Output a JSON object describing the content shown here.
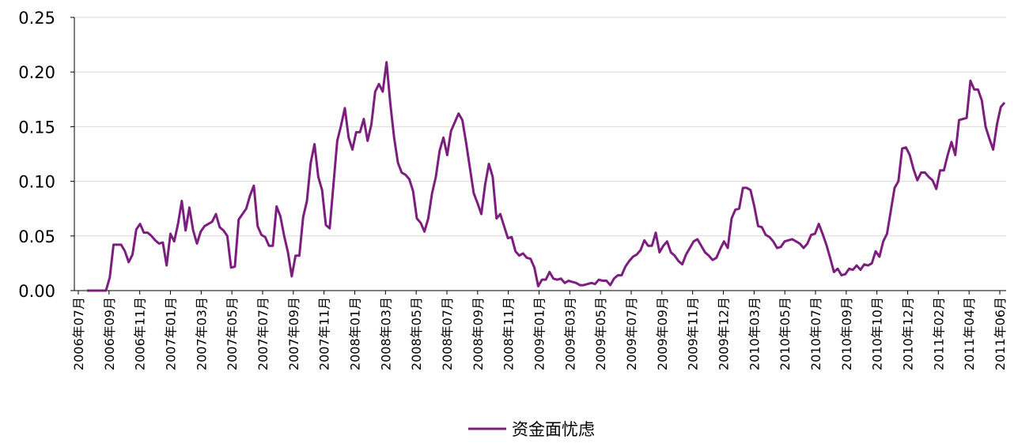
{
  "chart_data": {
    "type": "line",
    "title": "",
    "xlabel": "",
    "ylabel": "",
    "ylim": [
      0,
      0.25
    ],
    "yticks": [
      "0.00",
      "0.05",
      "0.10",
      "0.15",
      "0.20",
      "0.25"
    ],
    "grid": "horizontal",
    "legend_position": "bottom",
    "color": "#7B1E7E",
    "xtick_labels": [
      "2006年07月",
      "2006年09月",
      "2006年11月",
      "2007年01月",
      "2007年03月",
      "2007年05月",
      "2007年07月",
      "2007年09月",
      "2007年11月",
      "2008年01月",
      "2008年03月",
      "2008年05月",
      "2008年07月",
      "2008年09月",
      "2008年11月",
      "2009年01月",
      "2009年03月",
      "2009年05月",
      "2009年07月",
      "2009年09月",
      "2009年11月",
      "2009年12月",
      "2010年03月",
      "2010年05月",
      "2010年07月",
      "2010年09月",
      "2010年10月",
      "2010年12月",
      "2011年02月",
      "2011年04月",
      "2011年06月"
    ],
    "series": [
      {
        "name": "资金面忧虑",
        "values": [
          0,
          0,
          0,
          0,
          0,
          0,
          0.012,
          0.042,
          0.042,
          0.042,
          0.036,
          0.026,
          0.033,
          0.056,
          0.061,
          0.053,
          0.053,
          0.05,
          0.046,
          0.043,
          0.044,
          0.023,
          0.052,
          0.045,
          0.061,
          0.082,
          0.055,
          0.076,
          0.055,
          0.043,
          0.054,
          0.059,
          0.061,
          0.063,
          0.07,
          0.058,
          0.055,
          0.05,
          0.021,
          0.022,
          0.065,
          0.07,
          0.075,
          0.087,
          0.096,
          0.059,
          0.051,
          0.049,
          0.041,
          0.041,
          0.077,
          0.068,
          0.05,
          0.035,
          0.013,
          0.032,
          0.032,
          0.067,
          0.082,
          0.117,
          0.134,
          0.104,
          0.092,
          0.06,
          0.057,
          0.097,
          0.137,
          0.151,
          0.167,
          0.14,
          0.129,
          0.145,
          0.145,
          0.157,
          0.137,
          0.152,
          0.182,
          0.189,
          0.182,
          0.209,
          0.171,
          0.14,
          0.117,
          0.108,
          0.106,
          0.102,
          0.091,
          0.066,
          0.062,
          0.054,
          0.066,
          0.089,
          0.104,
          0.128,
          0.14,
          0.124,
          0.146,
          0.154,
          0.162,
          0.156,
          0.135,
          0.112,
          0.089,
          0.08,
          0.07,
          0.097,
          0.116,
          0.104,
          0.066,
          0.07,
          0.059,
          0.048,
          0.049,
          0.036,
          0.032,
          0.034,
          0.03,
          0.029,
          0.021,
          0.004,
          0.01,
          0.01,
          0.017,
          0.011,
          0.01,
          0.011,
          0.007,
          0.009,
          0.008,
          0.007,
          0.005,
          0.005,
          0.006,
          0.007,
          0.006,
          0.01,
          0.009,
          0.009,
          0.005,
          0.011,
          0.014,
          0.014,
          0.022,
          0.027,
          0.031,
          0.033,
          0.037,
          0.046,
          0.041,
          0.041,
          0.053,
          0.035,
          0.041,
          0.045,
          0.035,
          0.032,
          0.027,
          0.024,
          0.033,
          0.039,
          0.045,
          0.047,
          0.041,
          0.035,
          0.032,
          0.028,
          0.03,
          0.038,
          0.045,
          0.039,
          0.066,
          0.074,
          0.075,
          0.094,
          0.094,
          0.092,
          0.077,
          0.059,
          0.058,
          0.051,
          0.049,
          0.045,
          0.039,
          0.04,
          0.045,
          0.046,
          0.047,
          0.045,
          0.043,
          0.039,
          0.043,
          0.051,
          0.052,
          0.061,
          0.052,
          0.042,
          0.03,
          0.017,
          0.02,
          0.014,
          0.015,
          0.02,
          0.019,
          0.023,
          0.019,
          0.024,
          0.023,
          0.025,
          0.036,
          0.031,
          0.045,
          0.052,
          0.073,
          0.094,
          0.1,
          0.13,
          0.131,
          0.124,
          0.111,
          0.101,
          0.108,
          0.108,
          0.104,
          0.101,
          0.093,
          0.11,
          0.11,
          0.124,
          0.136,
          0.124,
          0.156,
          0.157,
          0.158,
          0.192,
          0.184,
          0.184,
          0.174,
          0.15,
          0.139,
          0.129,
          0.152,
          0.168,
          0.172
        ]
      }
    ]
  }
}
